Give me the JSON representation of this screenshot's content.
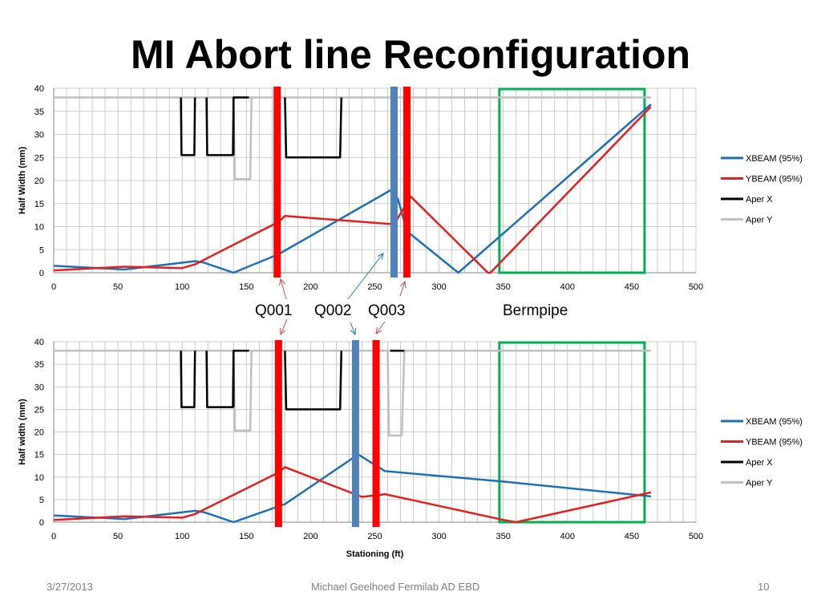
{
  "slide": {
    "title": "MI Abort line Reconfiguration",
    "footer_date": "3/27/2013",
    "footer_author": "Michael Geelhoed Fermilab AD EBD",
    "page_number": "10"
  },
  "annotations": {
    "q001": "Q001",
    "q002": "Q002",
    "q003": "Q003",
    "bermpipe": "Bermpipe",
    "arrow_colors": {
      "q001": "#c0504d",
      "q002": "#1f77b4",
      "q003": "#c0504d"
    }
  },
  "colors": {
    "xbeam": "#1f6fb4",
    "ybeam": "#e41f1f",
    "aper_x": "#000000",
    "aper_y": "#bfbfbf",
    "magnet_red": "#ff0000",
    "magnet_blue": "#4f81bd",
    "bermpipe_box": "#00b050",
    "grid": "#bfbfbf"
  },
  "chart_data": [
    {
      "type": "line",
      "title": "",
      "xlabel": "",
      "ylabel": "Half Width (mm)",
      "xlim": [
        0,
        500
      ],
      "ylim": [
        0,
        40
      ],
      "xticks": [
        0,
        50,
        100,
        150,
        200,
        250,
        300,
        350,
        400,
        450,
        500
      ],
      "yticks": [
        0,
        5,
        10,
        15,
        20,
        25,
        30,
        35,
        40
      ],
      "legend": [
        "XBEAM (95%)",
        "YBEAM (95%)",
        "Aper X",
        "Aper Y"
      ],
      "series": [
        {
          "name": "XBEAM (95%)",
          "color_key": "xbeam",
          "x": [
            0,
            55,
            110,
            117,
            140,
            175,
            263,
            268,
            275,
            315,
            465
          ],
          "y": [
            1.5,
            0.7,
            2.5,
            2.2,
            0,
            4,
            18,
            16,
            9,
            0,
            36.5
          ]
        },
        {
          "name": "YBEAM (95%)",
          "color_key": "ybeam",
          "x": [
            0,
            55,
            100,
            110,
            175,
            180,
            265,
            278,
            338,
            340,
            465
          ],
          "y": [
            0.5,
            1.3,
            1,
            1.8,
            11,
            12.3,
            10.5,
            16.5,
            0,
            0,
            36
          ]
        },
        {
          "name": "Aper X",
          "color_key": "aper_x",
          "segments": [
            {
              "x": [
                99,
                99.5,
                100,
                109,
                109.5,
                110
              ],
              "y": [
                38,
                25.5,
                25.5,
                25.5,
                25.5,
                38
              ]
            },
            {
              "x": [
                119,
                119.5,
                120,
                139,
                139.5,
                140
              ],
              "y": [
                38,
                25.5,
                25.5,
                25.5,
                25.5,
                38
              ]
            },
            {
              "x": [
                140,
                140,
                152
              ],
              "y": [
                25.5,
                38,
                38
              ]
            },
            {
              "x": [
                180,
                181,
                182,
                222,
                223,
                224
              ],
              "y": [
                38,
                25,
                25,
                25,
                25,
                38
              ]
            }
          ]
        },
        {
          "name": "Aper Y",
          "color_key": "aper_y",
          "segments": [
            {
              "x": [
                0,
                465
              ],
              "y": [
                38,
                38
              ]
            },
            {
              "x": [
                140,
                141,
                142,
                152,
                153,
                154
              ],
              "y": [
                38,
                20.3,
                20.3,
                20.3,
                20.3,
                38
              ]
            }
          ]
        }
      ],
      "magnets": [
        {
          "x": 174,
          "color_key": "magnet_red"
        },
        {
          "x": 265,
          "color_key": "magnet_blue"
        },
        {
          "x": 275,
          "color_key": "magnet_red"
        }
      ],
      "bermpipe_box": {
        "x": [
          347,
          460
        ],
        "y": [
          0,
          40
        ]
      }
    },
    {
      "type": "line",
      "title": "",
      "xlabel": "Stationing (ft)",
      "ylabel": "Half width (mm)",
      "xlim": [
        0,
        500
      ],
      "ylim": [
        0,
        40
      ],
      "xticks": [
        0,
        50,
        100,
        150,
        200,
        250,
        300,
        350,
        400,
        450,
        500
      ],
      "yticks": [
        0,
        5,
        10,
        15,
        20,
        25,
        30,
        35,
        40
      ],
      "legend": [
        "XBEAM (95%)",
        "YBEAM (95%)",
        "Aper X",
        "Aper Y"
      ],
      "series": [
        {
          "name": "XBEAM (95%)",
          "color_key": "xbeam",
          "x": [
            0,
            55,
            110,
            117,
            140,
            180,
            237,
            258,
            350,
            465
          ],
          "y": [
            1.5,
            0.7,
            2.5,
            2.2,
            0,
            4,
            15,
            11.3,
            9,
            5.7
          ]
        },
        {
          "name": "YBEAM (95%)",
          "color_key": "ybeam",
          "x": [
            0,
            55,
            100,
            110,
            175,
            180,
            240,
            258,
            350,
            360,
            465
          ],
          "y": [
            0.5,
            1.3,
            1,
            1.8,
            11,
            12.2,
            5.6,
            6.2,
            0.5,
            0,
            6.6
          ]
        },
        {
          "name": "Aper X",
          "color_key": "aper_x",
          "segments": [
            {
              "x": [
                99,
                99.5,
                100,
                109,
                109.5,
                110
              ],
              "y": [
                38,
                25.5,
                25.5,
                25.5,
                25.5,
                38
              ]
            },
            {
              "x": [
                119,
                119.5,
                120,
                139,
                139.5,
                140
              ],
              "y": [
                38,
                25.5,
                25.5,
                25.5,
                25.5,
                38
              ]
            },
            {
              "x": [
                140,
                140,
                152
              ],
              "y": [
                25.5,
                38,
                38
              ]
            },
            {
              "x": [
                180,
                181,
                182,
                222,
                223,
                224
              ],
              "y": [
                38,
                25,
                25,
                25,
                25,
                38
              ]
            },
            {
              "x": [
                262,
                273
              ],
              "y": [
                38,
                38
              ]
            }
          ]
        },
        {
          "name": "Aper Y",
          "color_key": "aper_y",
          "segments": [
            {
              "x": [
                0,
                465
              ],
              "y": [
                38,
                38
              ]
            },
            {
              "x": [
                140,
                141,
                142,
                152,
                153,
                154
              ],
              "y": [
                38,
                20.3,
                20.3,
                20.3,
                20.3,
                38
              ]
            },
            {
              "x": [
                260,
                261,
                262,
                270,
                271,
                273
              ],
              "y": [
                38,
                19.2,
                19.2,
                19.2,
                19.2,
                38
              ]
            }
          ]
        }
      ],
      "magnets": [
        {
          "x": 175,
          "color_key": "magnet_red"
        },
        {
          "x": 235,
          "color_key": "magnet_blue"
        },
        {
          "x": 251,
          "color_key": "magnet_red"
        }
      ],
      "bermpipe_box": {
        "x": [
          347,
          460
        ],
        "y": [
          0,
          40
        ]
      }
    }
  ]
}
